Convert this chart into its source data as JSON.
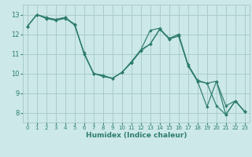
{
  "xlabel": "Humidex (Indice chaleur)",
  "background_color": "#cce8e8",
  "grid_color": "#aacccc",
  "line_color": "#2e7d6e",
  "xlim": [
    -0.5,
    23.5
  ],
  "ylim": [
    7.5,
    13.5
  ],
  "xticks": [
    0,
    1,
    2,
    3,
    4,
    5,
    6,
    7,
    8,
    9,
    10,
    11,
    12,
    13,
    14,
    15,
    16,
    17,
    18,
    19,
    20,
    21,
    22,
    23
  ],
  "yticks": [
    8,
    9,
    10,
    11,
    12,
    13
  ],
  "line1_y": [
    12.4,
    13.0,
    12.8,
    12.7,
    12.8,
    12.5,
    11.0,
    10.0,
    9.85,
    9.75,
    10.05,
    10.55,
    11.15,
    11.5,
    12.25,
    11.75,
    11.9,
    10.4,
    9.6,
    9.5,
    8.35,
    7.9,
    8.6,
    8.05
  ],
  "line2_y": [
    12.4,
    13.0,
    12.8,
    12.75,
    12.85,
    12.45,
    11.05,
    10.0,
    9.9,
    9.75,
    10.05,
    10.55,
    11.2,
    12.2,
    12.3,
    11.75,
    12.0,
    10.45,
    9.65,
    9.5,
    9.6,
    8.35,
    8.6,
    8.05
  ],
  "line3_y": [
    12.4,
    13.0,
    12.85,
    12.75,
    12.85,
    12.5,
    11.0,
    10.0,
    9.85,
    9.75,
    10.05,
    10.6,
    11.2,
    11.5,
    12.25,
    11.8,
    11.95,
    10.4,
    9.6,
    8.3,
    9.6,
    7.9,
    8.6,
    8.05
  ]
}
